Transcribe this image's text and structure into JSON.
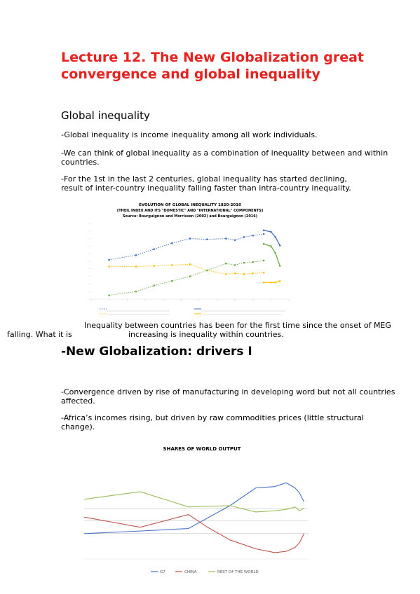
{
  "title": "Lecture 12. The New Globalization great convergence and global inequality",
  "section1": {
    "heading": "Global inequality",
    "p1": "-Global inequality is income inequality among all work individuals.",
    "p2": "-We can think of global inequality as a combination of inequality between and within countries.",
    "p3_line1": "-For the 1st in the last 2 centuries, global inequality has started declining,",
    "p3_line2": "result of inter-country inequality falling faster than intra-country inequality."
  },
  "caption1": {
    "line1": "Inequality between countries has been for the first time since the onset of MEG",
    "line2a": "falling. What it is",
    "line2b": "increasing is inequality within countries."
  },
  "section2": {
    "heading": "-New Globalization: drivers I",
    "p1": "-Convergence driven by rise of manufacturing in developing word but not all countries affected.",
    "p2": "-Africa’s incomes rising, but driven by raw commodities prices (little structural change)."
  },
  "chart_data": [
    {
      "type": "line",
      "title": "EVOLUTION OF GLOBAL INEQUALITY 1820-2010",
      "subtitle": "[THEIL INDEX AND ITS \"DOMESTIC\" AND \"INTERNATIONAL\" COMPONENTS]",
      "source": "Source: Bourguignon and Morrisson (2002) and Bourguignon (2016)",
      "xlim": [
        1800,
        2020
      ],
      "ylim": [
        0,
        1
      ],
      "colors": {
        "total": "#4472c4",
        "within": "#ffc000",
        "between": "#70ad47"
      },
      "series": [
        {
          "key": "total",
          "x": [
            1820,
            1850,
            1870,
            1890,
            1910,
            1929,
            1950,
            1960,
            1970,
            1980,
            1992
          ],
          "values": [
            0.52,
            0.58,
            0.66,
            0.74,
            0.8,
            0.79,
            0.8,
            0.78,
            0.82,
            0.84,
            0.86
          ]
        },
        {
          "key": "total",
          "x": [
            1992,
            2000,
            2005,
            2010
          ],
          "values": [
            0.91,
            0.89,
            0.82,
            0.71
          ]
        },
        {
          "key": "within",
          "x": [
            1820,
            1850,
            1870,
            1890,
            1910,
            1929,
            1950,
            1960,
            1970,
            1980,
            1992
          ],
          "values": [
            0.43,
            0.43,
            0.44,
            0.45,
            0.46,
            0.38,
            0.33,
            0.34,
            0.33,
            0.34,
            0.35
          ]
        },
        {
          "key": "within",
          "x": [
            1992,
            2000,
            2005,
            2010
          ],
          "values": [
            0.22,
            0.22,
            0.22,
            0.24
          ]
        },
        {
          "key": "between",
          "x": [
            1820,
            1850,
            1870,
            1890,
            1910,
            1929,
            1950,
            1960,
            1970,
            1980,
            1992
          ],
          "values": [
            0.05,
            0.1,
            0.18,
            0.24,
            0.3,
            0.38,
            0.47,
            0.45,
            0.48,
            0.49,
            0.51
          ]
        },
        {
          "key": "between",
          "x": [
            1992,
            2000,
            2005,
            2010
          ],
          "values": [
            0.73,
            0.7,
            0.61,
            0.44
          ]
        }
      ]
    },
    {
      "type": "line",
      "title": "SHARES OF WORLD OUTPUT",
      "xlim": [
        1820,
        2020
      ],
      "ylim": [
        0,
        0.8
      ],
      "series": [
        {
          "name": "G7",
          "color": "#4472c4",
          "x": [
            1820,
            1870,
            1913,
            1950,
            1973,
            1990,
            2000,
            2008,
            2012,
            2016
          ],
          "values": [
            0.2,
            0.22,
            0.24,
            0.42,
            0.56,
            0.57,
            0.6,
            0.56,
            0.52,
            0.45
          ]
        },
        {
          "name": "CHINA",
          "color": "#c0504d",
          "x": [
            1820,
            1870,
            1913,
            1930,
            1950,
            1973,
            1990,
            2000,
            2008,
            2012,
            2016
          ],
          "values": [
            0.33,
            0.25,
            0.35,
            0.25,
            0.15,
            0.08,
            0.05,
            0.06,
            0.09,
            0.13,
            0.2
          ]
        },
        {
          "name": "REST OF THE WORLD",
          "color": "#9bbb59",
          "x": [
            1820,
            1870,
            1913,
            1950,
            1973,
            1990,
            2000,
            2008,
            2012,
            2016
          ],
          "values": [
            0.47,
            0.53,
            0.41,
            0.42,
            0.37,
            0.38,
            0.39,
            0.41,
            0.38,
            0.4
          ]
        }
      ]
    }
  ]
}
